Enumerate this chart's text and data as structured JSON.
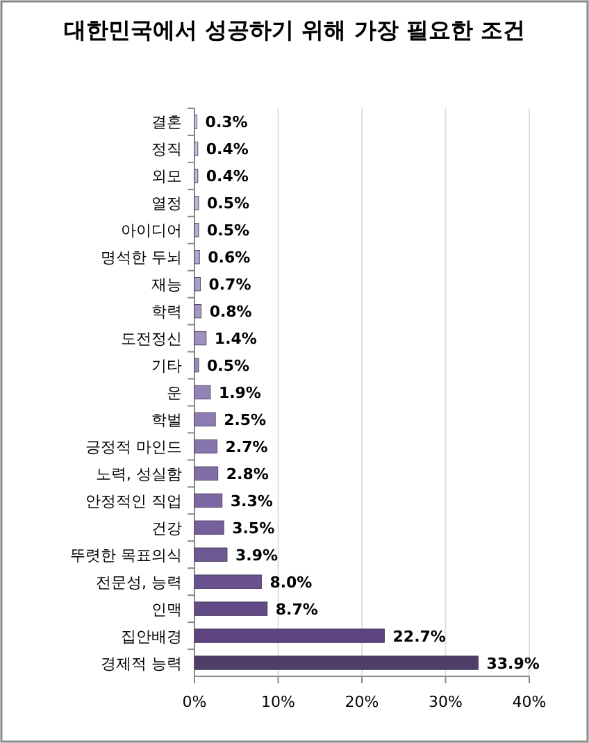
{
  "chart_data": {
    "type": "bar",
    "orientation": "horizontal",
    "title": "대한민국에서 성공하기 위해 가장 필요한 조건",
    "categories": [
      "결혼",
      "정직",
      "외모",
      "열정",
      "아이디어",
      "명석한 두뇌",
      "재능",
      "학력",
      "도전정신",
      "기타",
      "운",
      "학벌",
      "긍정적 마인드",
      "노력, 성실함",
      "안정적인 직업",
      "건강",
      "뚜렷한 목표의식",
      "전문성, 능력",
      "인맥",
      "집안배경",
      "경제적 능력"
    ],
    "values": [
      0.3,
      0.4,
      0.4,
      0.5,
      0.5,
      0.6,
      0.7,
      0.8,
      1.4,
      0.5,
      1.9,
      2.5,
      2.7,
      2.8,
      3.3,
      3.5,
      3.9,
      8.0,
      8.7,
      22.7,
      33.9
    ],
    "value_labels": [
      "0.3%",
      "0.4%",
      "0.4%",
      "0.5%",
      "0.5%",
      "0.6%",
      "0.7%",
      "0.8%",
      "1.4%",
      "0.5%",
      "1.9%",
      "2.5%",
      "2.7%",
      "2.8%",
      "3.3%",
      "3.5%",
      "3.9%",
      "8.0%",
      "8.7%",
      "22.7%",
      "33.9%"
    ],
    "colors": [
      "#cfc8df",
      "#c9c1db",
      "#c3bad7",
      "#bdb3d3",
      "#b7accf",
      "#b1a5cb",
      "#ab9ec7",
      "#a597c3",
      "#9f90bf",
      "#998abb",
      "#9383b7",
      "#8d7cb3",
      "#8775ad",
      "#816ea7",
      "#7b67a1",
      "#75609b",
      "#6f5995",
      "#69528f",
      "#634b88",
      "#5d4481",
      "#4f3d6a"
    ],
    "xlim": [
      0,
      40
    ],
    "xticks": [
      {
        "value": 0,
        "label": "0%"
      },
      {
        "value": 10,
        "label": "10%"
      },
      {
        "value": 20,
        "label": "20%"
      },
      {
        "value": 30,
        "label": "30%"
      },
      {
        "value": 40,
        "label": "40%"
      }
    ],
    "grid": "x"
  }
}
